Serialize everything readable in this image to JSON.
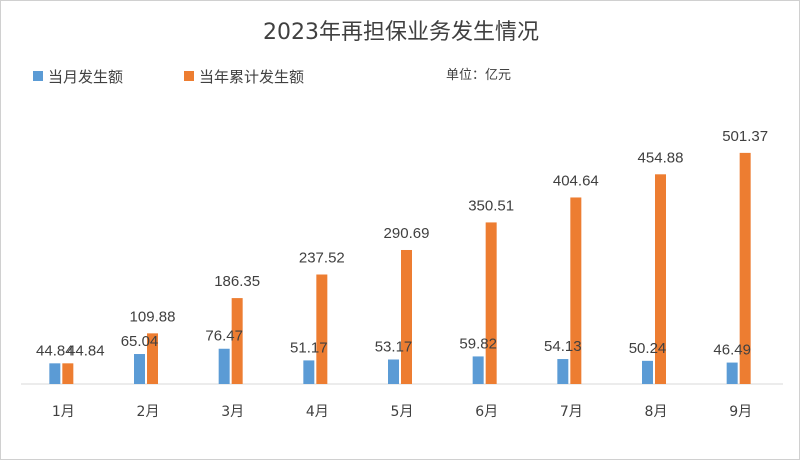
{
  "chart_data": {
    "type": "bar",
    "title": "2023年再担保业务发生情况",
    "unit_note": "单位：亿元",
    "categories": [
      "1月",
      "2月",
      "3月",
      "4月",
      "5月",
      "6月",
      "7月",
      "8月",
      "9月"
    ],
    "series": [
      {
        "name": "当月发生额",
        "color": "#5B9BD5",
        "values": [
          44.84,
          65.04,
          76.47,
          51.17,
          53.17,
          59.82,
          54.13,
          50.24,
          46.49
        ]
      },
      {
        "name": "当年累计发生额",
        "color": "#ED7D31",
        "values": [
          44.84,
          109.88,
          186.35,
          237.52,
          290.69,
          350.51,
          404.64,
          454.88,
          501.37
        ]
      }
    ],
    "legend_position": "top-left",
    "grid": false,
    "data_labels": true,
    "ylim": [
      0,
      600
    ]
  }
}
